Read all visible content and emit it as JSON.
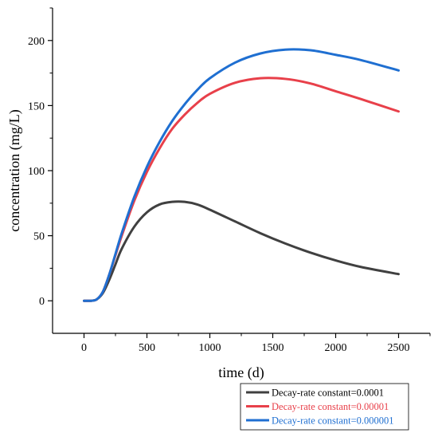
{
  "chart_data": {
    "type": "line",
    "xlabel": "time (d)",
    "ylabel": "concentration (mg/L)",
    "xlim": [
      -250,
      2750
    ],
    "ylim": [
      -25,
      225
    ],
    "x_ticks": [
      0,
      500,
      1000,
      1500,
      2000,
      2500
    ],
    "y_ticks": [
      0,
      50,
      100,
      150,
      200
    ],
    "grid": false,
    "legend_position": "bottom-right, below plot",
    "series": [
      {
        "name": "Decay-rate constant=0.0001",
        "color": "#404040",
        "x": [
          0,
          50,
          100,
          150,
          200,
          250,
          300,
          400,
          500,
          600,
          700,
          800,
          900,
          1000,
          1200,
          1400,
          1600,
          1800,
          2000,
          2200,
          2500
        ],
        "y": [
          0,
          0,
          1,
          6,
          16,
          28,
          40,
          57,
          68,
          74,
          76,
          76,
          74,
          70,
          61,
          52,
          44,
          37,
          31,
          26,
          20.5
        ]
      },
      {
        "name": "Decay-rate constant=0.00001",
        "color": "#e8404a",
        "x": [
          0,
          50,
          100,
          150,
          200,
          250,
          300,
          400,
          500,
          600,
          700,
          800,
          900,
          1000,
          1200,
          1400,
          1600,
          1800,
          2000,
          2200,
          2500
        ],
        "y": [
          0,
          0,
          1,
          7,
          20,
          35,
          50,
          77,
          99,
          117,
          132,
          143,
          152,
          159,
          167.5,
          171,
          170.5,
          167,
          161,
          155,
          145.5
        ]
      },
      {
        "name": "Decay-rate constant=0.000001",
        "color": "#1f6fd1",
        "x": [
          0,
          50,
          100,
          150,
          200,
          250,
          300,
          400,
          500,
          600,
          700,
          800,
          900,
          1000,
          1200,
          1400,
          1600,
          1800,
          2000,
          2200,
          2500
        ],
        "y": [
          0,
          0,
          1,
          7,
          20,
          36,
          52,
          80,
          103,
          122,
          138,
          151,
          162,
          171,
          183,
          190,
          193,
          192.5,
          189,
          185,
          177
        ]
      }
    ]
  }
}
